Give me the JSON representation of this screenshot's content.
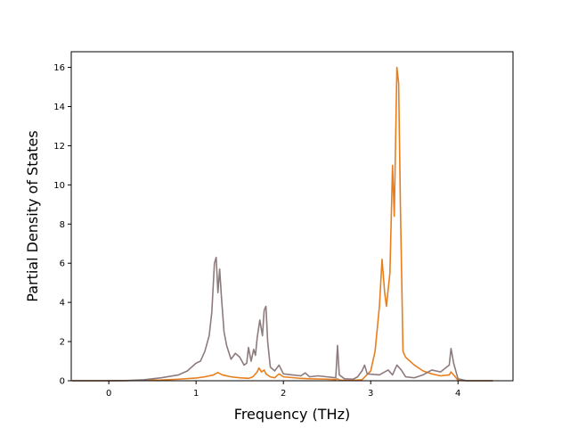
{
  "chart_data": {
    "type": "line",
    "title": "",
    "xlabel": "Frequency (THz)",
    "ylabel": "Partial Density of States",
    "xlim": [
      -0.43,
      4.63
    ],
    "ylim": [
      0,
      16.8
    ],
    "grid": false,
    "x_ticks": [
      0,
      1,
      2,
      3,
      4
    ],
    "y_ticks": [
      0,
      2,
      4,
      6,
      8,
      10,
      12,
      14,
      16
    ],
    "x_tick_labels": [
      "0",
      "1",
      "2",
      "3",
      "4"
    ],
    "y_tick_labels": [
      "0",
      "2",
      "4",
      "6",
      "8",
      "10",
      "12",
      "14",
      "16"
    ],
    "series": [
      {
        "color": "#e87f1e",
        "points": [
          [
            -0.42,
            0
          ],
          [
            0.0,
            0.0
          ],
          [
            0.2,
            0.01
          ],
          [
            0.4,
            0.02
          ],
          [
            0.6,
            0.04
          ],
          [
            0.8,
            0.08
          ],
          [
            1.0,
            0.14
          ],
          [
            1.1,
            0.2
          ],
          [
            1.2,
            0.3
          ],
          [
            1.25,
            0.42
          ],
          [
            1.3,
            0.3
          ],
          [
            1.4,
            0.2
          ],
          [
            1.5,
            0.15
          ],
          [
            1.6,
            0.12
          ],
          [
            1.65,
            0.2
          ],
          [
            1.7,
            0.45
          ],
          [
            1.72,
            0.65
          ],
          [
            1.75,
            0.45
          ],
          [
            1.78,
            0.55
          ],
          [
            1.8,
            0.35
          ],
          [
            1.85,
            0.2
          ],
          [
            1.9,
            0.15
          ],
          [
            1.95,
            0.35
          ],
          [
            2.0,
            0.2
          ],
          [
            2.2,
            0.12
          ],
          [
            2.3,
            0.1
          ],
          [
            2.5,
            0.08
          ],
          [
            2.6,
            0.06
          ],
          [
            2.62,
            0.1
          ],
          [
            2.64,
            0.04
          ],
          [
            2.7,
            0.02
          ],
          [
            2.8,
            0.02
          ],
          [
            2.9,
            0.05
          ],
          [
            3.0,
            0.5
          ],
          [
            3.05,
            1.5
          ],
          [
            3.1,
            3.8
          ],
          [
            3.13,
            6.2
          ],
          [
            3.16,
            4.5
          ],
          [
            3.18,
            3.8
          ],
          [
            3.22,
            5.5
          ],
          [
            3.25,
            11.0
          ],
          [
            3.27,
            8.4
          ],
          [
            3.3,
            16.0
          ],
          [
            3.32,
            15.2
          ],
          [
            3.34,
            9.0
          ],
          [
            3.37,
            1.5
          ],
          [
            3.4,
            1.2
          ],
          [
            3.5,
            0.8
          ],
          [
            3.6,
            0.5
          ],
          [
            3.7,
            0.35
          ],
          [
            3.8,
            0.25
          ],
          [
            3.9,
            0.3
          ],
          [
            3.92,
            0.45
          ],
          [
            3.95,
            0.3
          ],
          [
            4.0,
            0.02
          ],
          [
            4.1,
            0
          ],
          [
            4.4,
            0
          ]
        ]
      },
      {
        "color": "#8e7b7d",
        "points": [
          [
            -0.42,
            0
          ],
          [
            0.0,
            0.0
          ],
          [
            0.2,
            0.01
          ],
          [
            0.4,
            0.05
          ],
          [
            0.6,
            0.15
          ],
          [
            0.8,
            0.3
          ],
          [
            0.9,
            0.5
          ],
          [
            1.0,
            0.9
          ],
          [
            1.05,
            1.0
          ],
          [
            1.1,
            1.5
          ],
          [
            1.15,
            2.3
          ],
          [
            1.18,
            3.5
          ],
          [
            1.21,
            6.0
          ],
          [
            1.23,
            6.3
          ],
          [
            1.25,
            4.5
          ],
          [
            1.27,
            5.7
          ],
          [
            1.29,
            4.3
          ],
          [
            1.32,
            2.5
          ],
          [
            1.35,
            1.8
          ],
          [
            1.4,
            1.1
          ],
          [
            1.45,
            1.4
          ],
          [
            1.5,
            1.2
          ],
          [
            1.55,
            0.8
          ],
          [
            1.58,
            0.9
          ],
          [
            1.6,
            1.7
          ],
          [
            1.63,
            1.0
          ],
          [
            1.66,
            1.6
          ],
          [
            1.68,
            1.3
          ],
          [
            1.7,
            2.2
          ],
          [
            1.73,
            3.1
          ],
          [
            1.76,
            2.3
          ],
          [
            1.78,
            3.6
          ],
          [
            1.8,
            3.8
          ],
          [
            1.82,
            2.0
          ],
          [
            1.85,
            0.7
          ],
          [
            1.9,
            0.5
          ],
          [
            1.95,
            0.8
          ],
          [
            2.0,
            0.35
          ],
          [
            2.1,
            0.3
          ],
          [
            2.2,
            0.25
          ],
          [
            2.25,
            0.4
          ],
          [
            2.3,
            0.2
          ],
          [
            2.4,
            0.25
          ],
          [
            2.5,
            0.2
          ],
          [
            2.6,
            0.15
          ],
          [
            2.62,
            1.8
          ],
          [
            2.64,
            0.3
          ],
          [
            2.7,
            0.1
          ],
          [
            2.8,
            0.08
          ],
          [
            2.85,
            0.2
          ],
          [
            2.9,
            0.5
          ],
          [
            2.93,
            0.8
          ],
          [
            2.96,
            0.35
          ],
          [
            3.1,
            0.3
          ],
          [
            3.2,
            0.55
          ],
          [
            3.25,
            0.3
          ],
          [
            3.3,
            0.8
          ],
          [
            3.35,
            0.55
          ],
          [
            3.4,
            0.2
          ],
          [
            3.5,
            0.15
          ],
          [
            3.6,
            0.3
          ],
          [
            3.7,
            0.55
          ],
          [
            3.8,
            0.45
          ],
          [
            3.9,
            0.8
          ],
          [
            3.92,
            1.65
          ],
          [
            3.95,
            0.9
          ],
          [
            4.0,
            0.1
          ],
          [
            4.1,
            0
          ],
          [
            4.4,
            0
          ]
        ]
      }
    ]
  }
}
